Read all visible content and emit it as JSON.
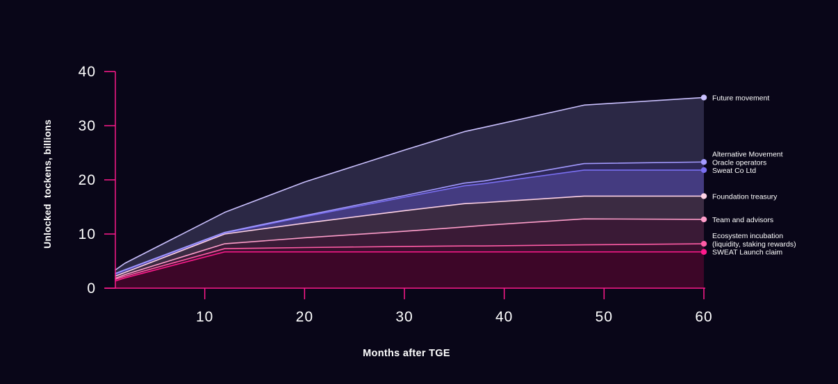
{
  "chart_data": {
    "type": "area",
    "xlabel": "Months after TGE",
    "ylabel": "Unlocked  tockens, billions",
    "xlim": [
      0,
      60
    ],
    "ylim": [
      0,
      40
    ],
    "xticks": [
      10,
      20,
      30,
      40,
      50,
      60
    ],
    "yticks": [
      0,
      10,
      20,
      30,
      40
    ],
    "grid": false,
    "legend": "right",
    "x": [
      1,
      2,
      12,
      20,
      30,
      36,
      38,
      48,
      60
    ],
    "series": [
      {
        "name": "SWEAT Launch claim",
        "color": "#ff1a8c",
        "fill": "#3d0628",
        "values": [
          1.3,
          1.9,
          6.7,
          6.7,
          6.7,
          6.7,
          6.7,
          6.7,
          6.7
        ]
      },
      {
        "name": "Ecosystem incubation\n(liquidity, staking rewards)",
        "color": "#ff5ca6",
        "fill": "#3a0f2e",
        "values": [
          1.6,
          2.2,
          7.3,
          7.5,
          7.7,
          7.8,
          7.8,
          8.0,
          8.2
        ]
      },
      {
        "name": "Team and advisors",
        "color": "#ff9ecb",
        "fill": "#3a1a36",
        "values": [
          1.8,
          2.5,
          8.2,
          9.3,
          10.5,
          11.3,
          11.6,
          12.8,
          12.7
        ]
      },
      {
        "name": "Foundation treasury",
        "color": "#ffd3e6",
        "fill": "#3b2b42",
        "values": [
          2.2,
          2.9,
          10.0,
          12.0,
          14.3,
          15.6,
          15.8,
          17.0,
          17.0
        ]
      },
      {
        "name": "Sweat Co Ltd",
        "color": "#7a6ff2",
        "fill": "#443b80",
        "values": [
          2.6,
          3.3,
          10.2,
          13.2,
          16.8,
          18.9,
          19.3,
          21.8,
          21.8
        ]
      },
      {
        "name": "Alternative Movement\nOracle operators",
        "color": "#a39aff",
        "fill": "#2e2858",
        "values": [
          2.7,
          3.4,
          10.3,
          13.4,
          17.1,
          19.4,
          19.8,
          23.0,
          23.3
        ]
      },
      {
        "name": "Future movement",
        "color": "#cbc1ff",
        "fill": "#2b2845",
        "values": [
          3.3,
          4.6,
          14.0,
          19.6,
          25.5,
          28.9,
          29.7,
          33.8,
          35.2
        ]
      }
    ],
    "colors": {
      "background": "#090618",
      "axis": "#ff1a8c",
      "text": "#ffffff"
    }
  }
}
